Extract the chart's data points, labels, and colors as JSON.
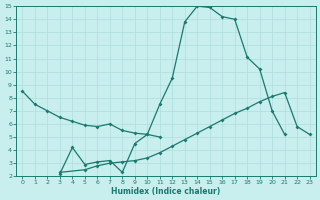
{
  "xlabel": "Humidex (Indice chaleur)",
  "color": "#1a7a6e",
  "bg_color": "#c8eeee",
  "grid_color": "#b0dddd",
  "ylim": [
    2,
    15
  ],
  "xlim": [
    -0.5,
    23.5
  ],
  "xticks": [
    0,
    1,
    2,
    3,
    4,
    5,
    6,
    7,
    8,
    9,
    10,
    11,
    12,
    13,
    14,
    15,
    16,
    17,
    18,
    19,
    20,
    21,
    22,
    23
  ],
  "yticks": [
    2,
    3,
    4,
    5,
    6,
    7,
    8,
    9,
    10,
    11,
    12,
    13,
    14,
    15
  ],
  "line_descending": {
    "x": [
      0,
      1,
      2,
      3,
      4,
      5,
      6,
      7,
      8,
      9,
      10,
      11
    ],
    "y": [
      8.5,
      7.5,
      7.0,
      6.5,
      6.2,
      5.9,
      5.8,
      6.0,
      5.5,
      5.3,
      5.2,
      5.0
    ]
  },
  "line_peak": {
    "x": [
      3,
      4,
      5,
      6,
      7,
      8,
      9,
      10,
      11,
      12,
      13,
      14,
      15,
      16,
      17,
      18,
      19,
      20,
      21
    ],
    "y": [
      2.2,
      4.2,
      2.9,
      3.1,
      3.2,
      2.3,
      4.5,
      5.2,
      7.5,
      9.5,
      13.8,
      15.0,
      14.9,
      14.2,
      14.0,
      11.1,
      10.2,
      7.0,
      5.2
    ]
  },
  "line_rising": {
    "x": [
      3,
      5,
      6,
      7,
      8,
      9,
      10,
      11,
      12,
      13,
      14,
      15,
      16,
      17,
      18,
      19,
      20,
      21,
      22,
      23
    ],
    "y": [
      2.3,
      2.5,
      2.8,
      3.0,
      3.1,
      3.2,
      3.4,
      3.8,
      4.3,
      4.8,
      5.3,
      5.8,
      6.3,
      6.8,
      7.2,
      7.7,
      8.1,
      8.4,
      5.8,
      5.2
    ]
  }
}
